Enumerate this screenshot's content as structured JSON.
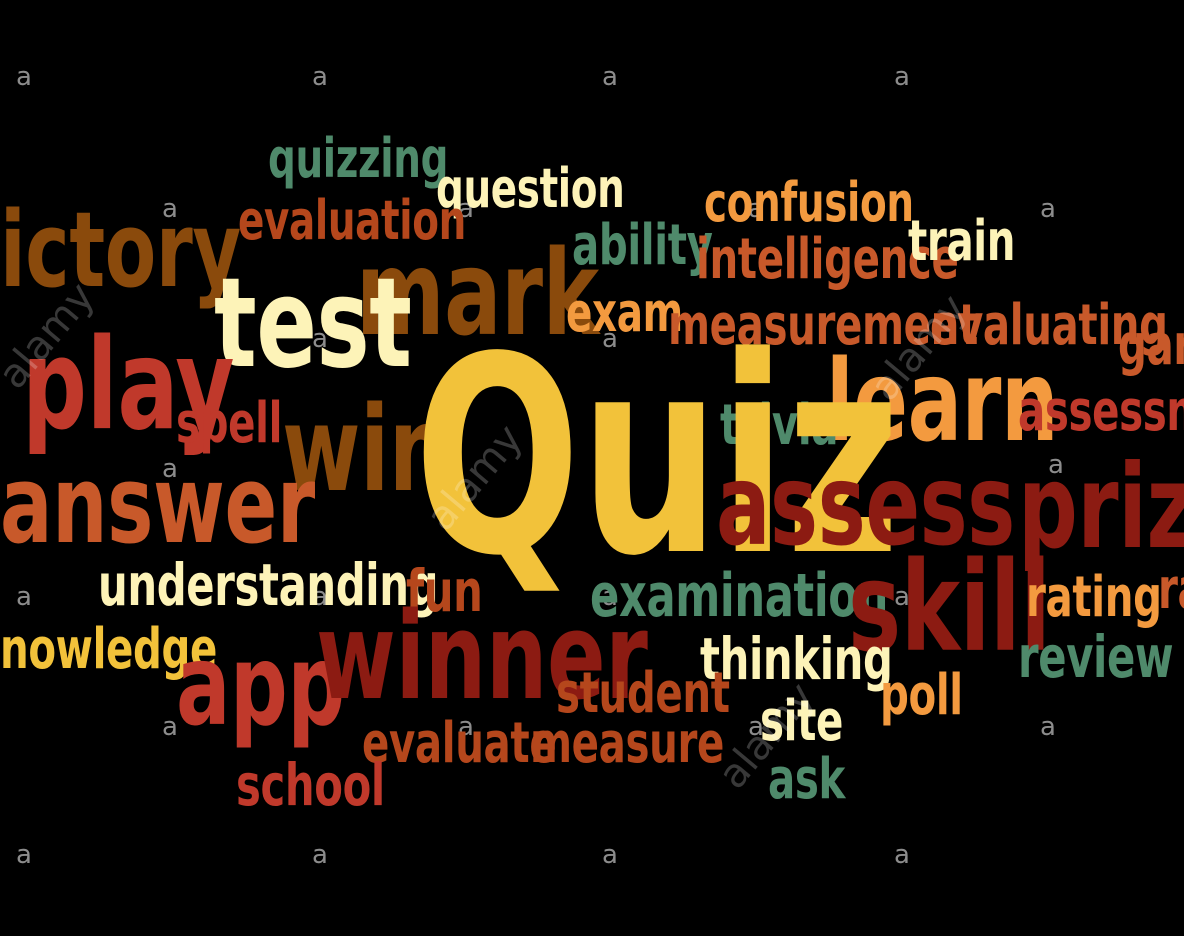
{
  "colors": {
    "background": "#000000",
    "yellow": "#f2c23a",
    "cream": "#fdf3b8",
    "orange": "#f39a3f",
    "darkorange": "#c8592a",
    "brown": "#8a4a0c",
    "red": "#c0392b",
    "darkred": "#8c1b12",
    "green": "#4f8a6b",
    "rust": "#b5471c"
  },
  "words": {
    "quiz": "Quiz",
    "quizzing": "quizzing",
    "question": "question",
    "confusion": "confusion",
    "victory": "ictory",
    "evaluation": "evaluation",
    "ability": "ability",
    "intelligence": "intelligence",
    "train": "train",
    "mark": "mark",
    "test": "test",
    "exam": "exam",
    "measurement": "measurement",
    "evaluating": "evaluating",
    "game": "gam",
    "play": "play",
    "learn": "learn",
    "spell": "spell",
    "win": "win",
    "trivia": "trivia",
    "assessment": "assessm",
    "answer": "answer",
    "assess": "assess",
    "prize": "prize",
    "understanding": "understanding",
    "fun": "fun",
    "examination": "examination",
    "skill": "skill",
    "rating": "rating",
    "ra": "ra",
    "knowledge": "nowledge",
    "app": "app",
    "winner": "winner",
    "thinking": "thinking",
    "review": "review",
    "student": "student",
    "poll": "poll",
    "site": "site",
    "evaluate": "evaluate",
    "measure": "measure",
    "ask": "ask",
    "school": "school"
  },
  "watermark": {
    "letter": "a",
    "brand": "alamy"
  }
}
